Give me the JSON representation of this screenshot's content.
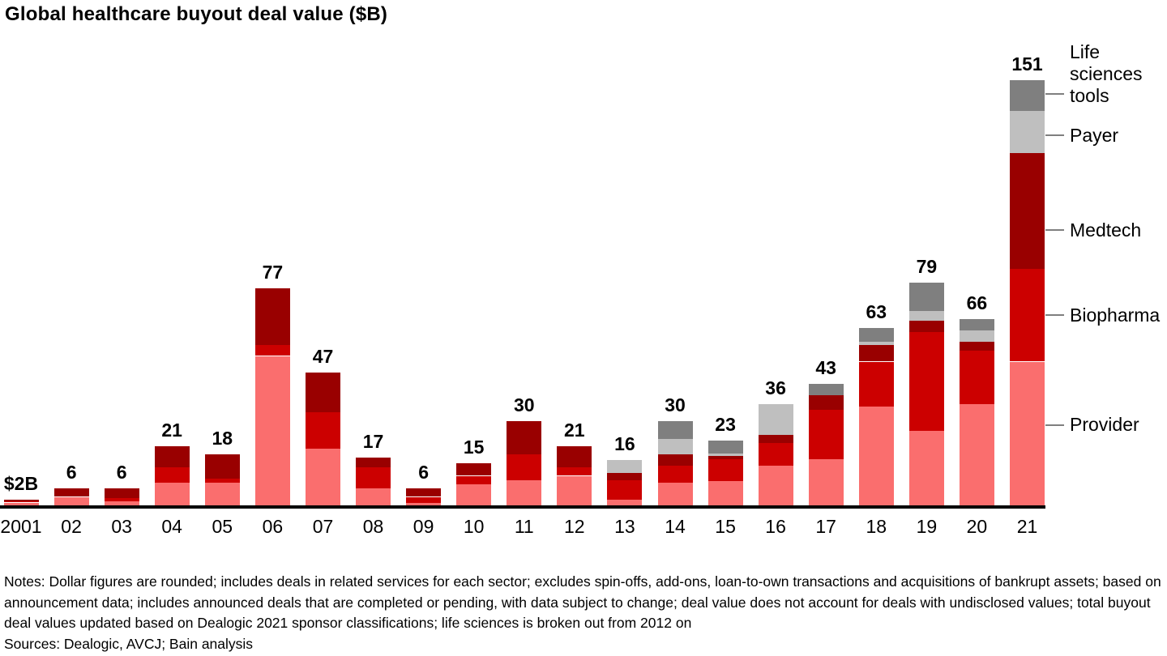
{
  "title": "Global healthcare buyout deal value ($B)",
  "chart_data": {
    "type": "bar",
    "stacked": true,
    "unit": "$B",
    "title": "Global healthcare buyout deal value ($B)",
    "xlabel": "",
    "ylabel": "Deal value ($B)",
    "gridlines": false,
    "y_axis_visible": false,
    "legend_position": "right",
    "categories": [
      "2001",
      "02",
      "03",
      "04",
      "05",
      "06",
      "07",
      "08",
      "09",
      "10",
      "11",
      "12",
      "13",
      "14",
      "15",
      "16",
      "17",
      "18",
      "19",
      "20",
      "21"
    ],
    "series": [
      {
        "name": "Provider",
        "color": "#fa6e6e",
        "values": [
          1,
          3,
          1.5,
          8,
          8,
          53,
          20,
          6,
          1,
          7.5,
          9,
          10.5,
          2,
          8,
          8.5,
          14,
          16.5,
          35,
          26.5,
          36,
          51
        ]
      },
      {
        "name": "Biopharma",
        "color": "#cc0000",
        "values": [
          0.5,
          0,
          1,
          5.5,
          1.5,
          4,
          13,
          7.5,
          2,
          3,
          9,
          3,
          7,
          6,
          8,
          8,
          17.5,
          16,
          35,
          19,
          33
        ]
      },
      {
        "name": "Medtech",
        "color": "#990000",
        "values": [
          0.5,
          3,
          3.5,
          7.5,
          8.5,
          20,
          14,
          3.5,
          3,
          4.5,
          12,
          7.5,
          2.5,
          4,
          1,
          3,
          5,
          6,
          4,
          3,
          41
        ]
      },
      {
        "name": "Payer",
        "color": "#bfbfbf",
        "values": [
          0,
          0,
          0,
          0,
          0,
          0,
          0,
          0,
          0,
          0,
          0,
          0,
          4.5,
          5.5,
          1,
          11,
          0,
          1,
          3.5,
          4,
          15
        ]
      },
      {
        "name": "Life sciences tools",
        "color": "#7f7f7f",
        "values": [
          0,
          0,
          0,
          0,
          0,
          0,
          0,
          0,
          0,
          0,
          0,
          0,
          0,
          6.5,
          4.5,
          0,
          4,
          5,
          10,
          4,
          11
        ]
      }
    ],
    "totals": [
      2,
      6,
      6,
      21,
      18,
      77,
      47,
      17,
      6,
      15,
      30,
      21,
      16,
      30,
      23,
      36,
      43,
      63,
      79,
      66,
      151
    ],
    "total_labels": [
      "$2B",
      "6",
      "6",
      "21",
      "18",
      "77",
      "47",
      "17",
      "6",
      "15",
      "30",
      "21",
      "16",
      "30",
      "23",
      "36",
      "43",
      "63",
      "79",
      "66",
      "151"
    ],
    "first_bar_annotation": "$2B"
  },
  "legend": {
    "items": [
      "Life sciences tools",
      "Payer",
      "Medtech",
      "Biopharma",
      "Provider"
    ]
  },
  "footer": {
    "notes": "Notes: Dollar figures are rounded; includes deals in related services for each sector; excludes spin-offs, add-ons, loan-to-own transactions and acquisitions of bankrupt assets; based on announcement data; includes announced deals that are completed or pending, with data subject to change; deal value does not account for deals with undisclosed values; total buyout deal values updated based on Dealogic 2021 sponsor classifications; life sciences is broken out from 2012 on",
    "sources": "Sources: Dealogic, AVCJ; Bain analysis"
  }
}
